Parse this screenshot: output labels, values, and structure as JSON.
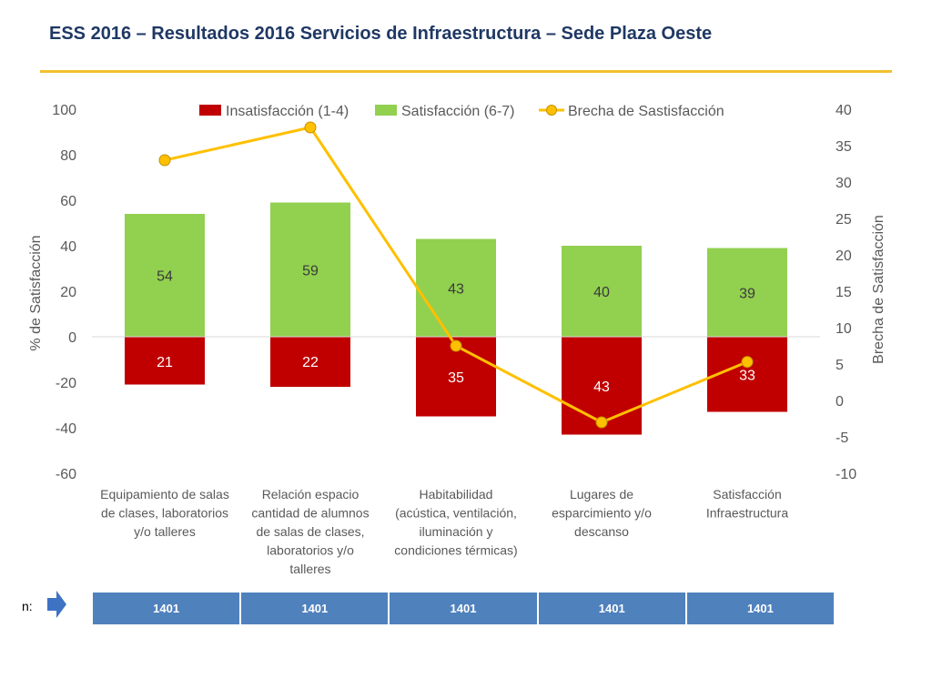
{
  "header": {
    "title": "ESS 2016 – Resultados 2016 Servicios de Infraestructura – Sede Plaza Oeste"
  },
  "colors": {
    "insatisfaccion": "#c00000",
    "satisfaccion": "#92d050",
    "brecha": "#ffc000",
    "table": "#4f81bd"
  },
  "chart_data": {
    "type": "bar",
    "categories": [
      [
        "Equipamiento de salas",
        "de clases, laboratorios",
        "y/o talleres"
      ],
      [
        "Relación espacio",
        "cantidad de alumnos",
        "de salas de clases,",
        "laboratorios y/o",
        "talleres"
      ],
      [
        "Habitabilidad",
        "(acústica, ventilación,",
        "iluminación y",
        "condiciones térmicas)"
      ],
      [
        "Lugares de",
        "esparcimiento y/o",
        "descanso"
      ],
      [
        "Satisfacción",
        "Infraestructura"
      ]
    ],
    "series": [
      {
        "name": "Insatisfacción (1-4)",
        "values": [
          -21,
          -22,
          -35,
          -43,
          -33
        ],
        "labels": [
          "21",
          "22",
          "35",
          "43",
          "33"
        ],
        "axis": "left",
        "kind": "bar"
      },
      {
        "name": "Satisfacción (6-7)",
        "values": [
          54,
          59,
          43,
          40,
          39
        ],
        "labels": [
          "54",
          "59",
          "43",
          "40",
          "39"
        ],
        "axis": "left",
        "kind": "bar"
      },
      {
        "name": "Brecha de Sastisfacción",
        "values": [
          33,
          37.5,
          7.5,
          -3,
          5.3
        ],
        "axis": "right",
        "kind": "line"
      }
    ],
    "ylabel": "% de Satisfacción",
    "y2label": "Brecha de Satisfacción",
    "ylim": [
      -60,
      100
    ],
    "y2lim": [
      -10,
      40
    ],
    "yticks": [
      "100",
      "80",
      "60",
      "40",
      "20",
      "0",
      "-20",
      "-40",
      "-60"
    ],
    "y2ticks": [
      "40",
      "35",
      "30",
      "25",
      "20",
      "15",
      "10",
      "5",
      "0",
      "-5",
      "-10"
    ],
    "legend_position": "top"
  },
  "footer": {
    "n_label": "n:",
    "n_values": [
      "1401",
      "1401",
      "1401",
      "1401",
      "1401"
    ]
  }
}
